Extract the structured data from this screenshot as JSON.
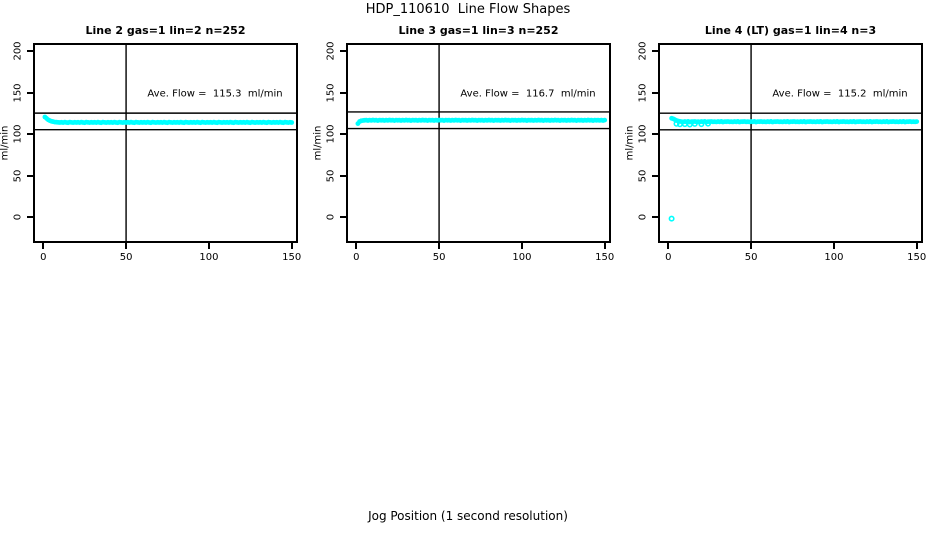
{
  "page": {
    "title": "HDP_110610  Line Flow Shapes",
    "xlabel": "Jog Position (1 second resolution)"
  },
  "colors": {
    "points": "#00ffff",
    "axis": "#000000"
  },
  "chart_data": [
    {
      "type": "scatter",
      "title": "Line 2 gas=1 lin=2 n=252",
      "annotation": "Ave. Flow =  115.3  ml/min",
      "ave_flow": 115.3,
      "n": 252,
      "ylabel": "ml/min",
      "xticks": [
        0,
        50,
        100,
        150
      ],
      "yticks": [
        0,
        50,
        100,
        150,
        200
      ],
      "xlim": [
        -6.2,
        153.8
      ],
      "ylim": [
        -31.4,
        209.9
      ],
      "vline_x": 50,
      "hlines": [
        125.3,
        105.3
      ],
      "points": {
        "x_start": 1,
        "x_step": 1,
        "y": [
          120.6,
          118.9,
          117.3,
          116.2,
          115.4,
          114.9,
          114.5,
          114.3,
          114.1,
          114.0,
          114.2,
          113.9,
          114.3,
          114.0,
          113.8,
          114.4,
          114.1,
          113.9,
          114.2,
          114.0,
          114.2,
          113.9,
          114.3,
          114.0,
          113.8,
          114.4,
          114.1,
          113.9,
          114.2,
          114.0,
          114.2,
          113.9,
          114.3,
          114.0,
          113.8,
          114.4,
          114.1,
          113.9,
          114.2,
          114.0,
          114.2,
          113.9,
          114.3,
          114.0,
          113.8,
          114.4,
          114.1,
          113.9,
          114.2,
          114.0,
          114.2,
          113.9,
          114.3,
          114.0,
          113.8,
          114.4,
          114.1,
          113.9,
          114.2,
          114.0,
          114.2,
          113.9,
          114.3,
          114.0,
          113.8,
          114.4,
          114.1,
          113.9,
          114.2,
          114.0,
          114.2,
          113.9,
          114.3,
          114.0,
          113.8,
          114.4,
          114.1,
          113.9,
          114.2,
          114.0,
          114.2,
          113.9,
          114.3,
          114.0,
          113.8,
          114.4,
          114.1,
          113.9,
          114.2,
          114.0,
          114.2,
          113.9,
          114.3,
          114.0,
          113.8,
          114.4,
          114.1,
          113.9,
          114.2,
          114.0,
          114.2,
          113.9,
          114.3,
          114.0,
          113.8,
          114.4,
          114.1,
          113.9,
          114.2,
          114.0,
          114.2,
          113.9,
          114.3,
          114.0,
          113.8,
          114.4,
          114.1,
          113.9,
          114.2,
          114.0,
          114.2,
          113.9,
          114.3,
          114.0,
          113.8,
          114.4,
          114.1,
          113.9,
          114.2,
          114.0,
          114.2,
          113.9,
          114.3,
          114.0,
          113.8,
          114.4,
          114.1,
          113.9,
          114.2,
          114.0,
          114.2,
          113.9,
          114.3,
          114.0,
          113.8,
          114.4,
          114.1,
          113.9,
          114.2,
          114.0
        ]
      },
      "extra_points": []
    },
    {
      "type": "scatter",
      "title": "Line 3 gas=1 lin=3 n=252",
      "annotation": "Ave. Flow =  116.7  ml/min",
      "ave_flow": 116.7,
      "n": 252,
      "ylabel": "ml/min",
      "xticks": [
        0,
        50,
        100,
        150
      ],
      "yticks": [
        0,
        50,
        100,
        150,
        200
      ],
      "xlim": [
        -6.2,
        153.8
      ],
      "ylim": [
        -31.4,
        209.9
      ],
      "vline_x": 50,
      "hlines": [
        126.7,
        106.7
      ],
      "points": {
        "x_start": 1,
        "x_step": 1,
        "y": [
          112.6,
          115.2,
          116.0,
          116.4,
          116.6,
          116.7,
          116.4,
          116.9,
          116.5,
          117.0,
          116.6,
          116.8,
          116.3,
          116.9,
          116.6,
          116.7,
          116.4,
          116.9,
          116.5,
          117.0,
          116.6,
          116.8,
          116.3,
          116.9,
          116.6,
          116.7,
          116.4,
          116.9,
          116.5,
          117.0,
          116.6,
          116.8,
          116.3,
          116.9,
          116.6,
          116.7,
          116.4,
          116.9,
          116.5,
          117.0,
          116.6,
          116.8,
          116.3,
          116.9,
          116.6,
          116.7,
          116.4,
          116.9,
          116.5,
          117.0,
          116.6,
          116.8,
          116.3,
          116.9,
          116.6,
          116.7,
          116.4,
          116.9,
          116.5,
          117.0,
          116.6,
          116.8,
          116.3,
          116.9,
          116.6,
          116.7,
          116.4,
          116.9,
          116.5,
          117.0,
          116.6,
          116.8,
          116.3,
          116.9,
          116.6,
          116.7,
          116.4,
          116.9,
          116.5,
          117.0,
          116.6,
          116.8,
          116.3,
          116.9,
          116.6,
          116.7,
          116.4,
          116.9,
          116.5,
          117.0,
          116.6,
          116.8,
          116.3,
          116.9,
          116.6,
          116.7,
          116.4,
          116.9,
          116.5,
          117.0,
          116.6,
          116.8,
          116.3,
          116.9,
          116.6,
          116.7,
          116.4,
          116.9,
          116.5,
          117.0,
          116.6,
          116.8,
          116.3,
          116.9,
          116.6,
          116.7,
          116.4,
          116.9,
          116.5,
          117.0,
          116.6,
          116.8,
          116.3,
          116.9,
          116.6,
          116.7,
          116.4,
          116.9,
          116.5,
          117.0,
          116.6,
          116.8,
          116.3,
          116.9,
          116.6,
          116.7,
          116.4,
          116.9,
          116.5,
          117.0,
          116.6,
          116.8,
          116.3,
          116.9,
          116.6,
          116.7,
          116.5,
          116.8,
          116.4,
          116.9
        ]
      },
      "extra_points": []
    },
    {
      "type": "scatter",
      "title": "Line 4 (LT) gas=1 lin=4 n=3",
      "annotation": "Ave. Flow =  115.2  ml/min",
      "ave_flow": 115.2,
      "n": 3,
      "ylabel": "ml/min",
      "xticks": [
        0,
        50,
        100,
        150
      ],
      "yticks": [
        0,
        50,
        100,
        150,
        200
      ],
      "xlim": [
        -6.2,
        153.8
      ],
      "ylim": [
        -31.4,
        209.9
      ],
      "vline_x": 50,
      "hlines": [
        125.2,
        105.2
      ],
      "points": {
        "x_start": 2,
        "x_step": 1,
        "y": [
          119.0,
          118.4,
          117.4,
          116.4,
          115.8,
          115.3,
          115.0,
          114.7,
          115.2,
          114.8,
          115.3,
          114.6,
          115.1,
          114.9,
          115.2,
          114.8,
          115.0,
          114.7,
          115.2,
          114.8,
          115.3,
          114.6,
          115.1,
          114.9,
          115.2,
          114.8,
          115.0,
          114.7,
          115.2,
          114.8,
          115.3,
          114.6,
          115.1,
          114.9,
          115.2,
          114.8,
          115.0,
          114.7,
          115.2,
          114.8,
          115.3,
          114.6,
          115.1,
          114.9,
          115.2,
          114.8,
          115.0,
          114.7,
          115.2,
          114.8,
          115.3,
          114.6,
          115.1,
          114.9,
          115.2,
          114.8,
          115.0,
          114.7,
          115.2,
          114.8,
          115.3,
          114.6,
          115.1,
          114.9,
          115.2,
          114.8,
          115.0,
          114.7,
          115.2,
          114.8,
          115.3,
          114.6,
          115.1,
          114.9,
          115.2,
          114.8,
          115.0,
          114.7,
          115.2,
          114.8,
          115.3,
          114.6,
          115.1,
          114.9,
          115.2,
          114.8,
          115.0,
          114.7,
          115.2,
          114.8,
          115.3,
          114.6,
          115.1,
          114.9,
          115.2,
          114.8,
          115.0,
          114.7,
          115.2,
          114.8,
          115.3,
          114.6,
          115.1,
          114.9,
          115.2,
          114.8,
          115.0,
          114.7,
          115.2,
          114.8,
          115.3,
          114.6,
          115.1,
          114.9,
          115.2,
          114.8,
          115.0,
          114.7,
          115.2,
          114.8,
          115.3,
          114.6,
          115.1,
          114.9,
          115.2,
          114.8,
          115.0,
          114.7,
          115.2,
          114.8,
          115.3,
          114.6,
          115.1,
          114.9,
          115.2,
          114.8,
          115.0,
          114.7,
          115.2,
          114.8,
          115.3,
          114.6,
          115.1,
          114.9,
          115.2,
          114.8,
          115.0,
          114.8,
          115.1
        ]
      },
      "extra_points": [
        [
          2,
          -2.0
        ],
        [
          5,
          112.4
        ],
        [
          7,
          111.8
        ],
        [
          10,
          112.1
        ],
        [
          13,
          111.6
        ],
        [
          16,
          112.3
        ],
        [
          20,
          112.0
        ],
        [
          24,
          112.6
        ]
      ]
    }
  ]
}
